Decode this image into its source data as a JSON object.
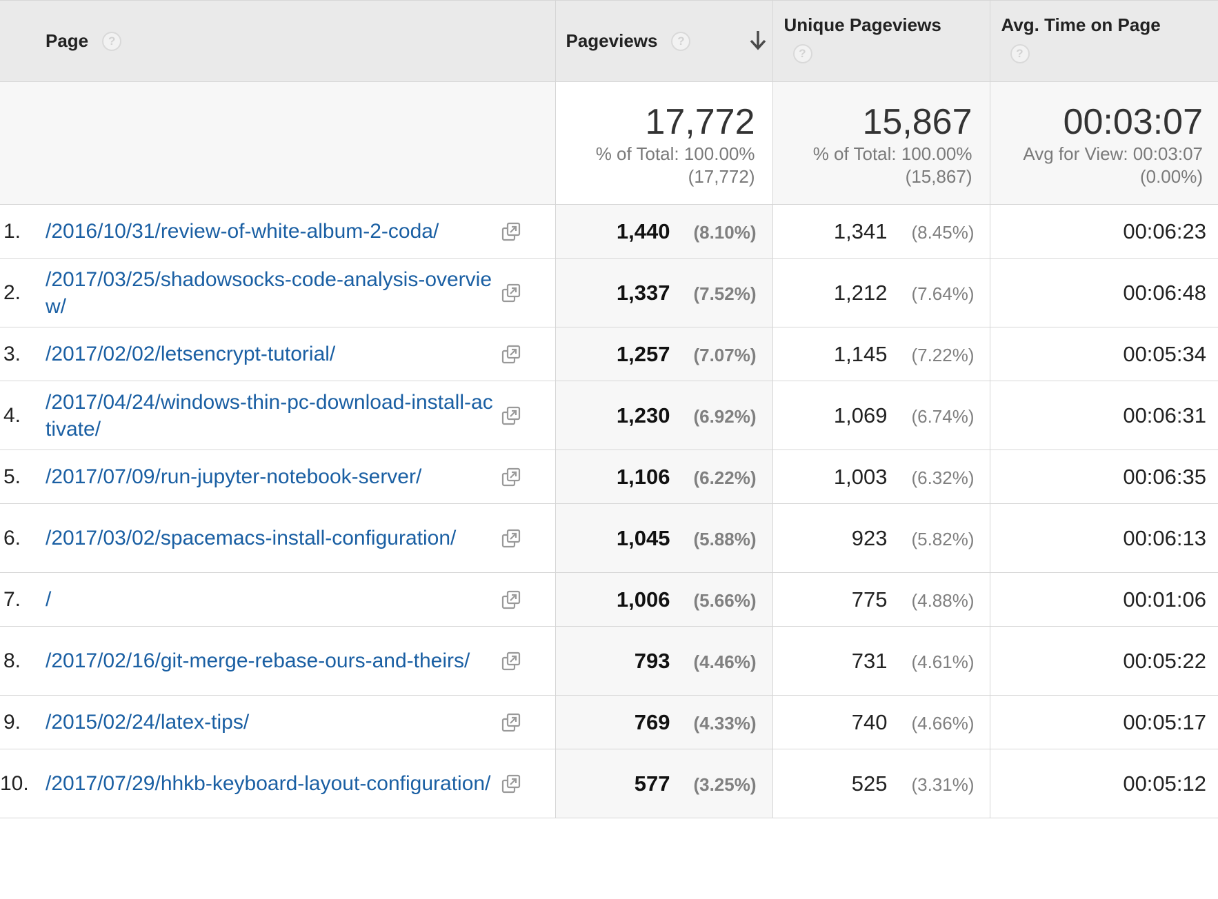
{
  "header": {
    "page": "Page",
    "pageviews": "Pageviews",
    "unique_pageviews": "Unique Pageviews",
    "avg_time": "Avg. Time on Page",
    "help_glyph": "?",
    "sort_icon": "arrow-down-icon"
  },
  "totals": {
    "pageviews": {
      "value": "17,772",
      "pct": "% of Total: 100.00%",
      "abs": "(17,772)"
    },
    "unique_pageviews": {
      "value": "15,867",
      "pct": "% of Total: 100.00%",
      "abs": "(15,867)"
    },
    "avg_time": {
      "value": "00:03:07",
      "pct": "Avg for View: 00:03:07",
      "abs": "(0.00%)"
    }
  },
  "rows": [
    {
      "rank": "1.",
      "page": "/2016/10/31/review-of-white-album-2-coda/",
      "pageviews": "1,440",
      "pv_pct": "(8.10%)",
      "unique": "1,341",
      "upv_pct": "(8.45%)",
      "avg_time": "00:06:23"
    },
    {
      "rank": "2.",
      "page": "/2017/03/25/shadowsocks-code-analysis-overview/",
      "pageviews": "1,337",
      "pv_pct": "(7.52%)",
      "unique": "1,212",
      "upv_pct": "(7.64%)",
      "avg_time": "00:06:48"
    },
    {
      "rank": "3.",
      "page": "/2017/02/02/letsencrypt-tutorial/",
      "pageviews": "1,257",
      "pv_pct": "(7.07%)",
      "unique": "1,145",
      "upv_pct": "(7.22%)",
      "avg_time": "00:05:34"
    },
    {
      "rank": "4.",
      "page": "/2017/04/24/windows-thin-pc-download-install-activate/",
      "pageviews": "1,230",
      "pv_pct": "(6.92%)",
      "unique": "1,069",
      "upv_pct": "(6.74%)",
      "avg_time": "00:06:31"
    },
    {
      "rank": "5.",
      "page": "/2017/07/09/run-jupyter-notebook-server/",
      "pageviews": "1,106",
      "pv_pct": "(6.22%)",
      "unique": "1,003",
      "upv_pct": "(6.32%)",
      "avg_time": "00:06:35"
    },
    {
      "rank": "6.",
      "page": "/2017/03/02/spacemacs-install-configuration/",
      "pageviews": "1,045",
      "pv_pct": "(5.88%)",
      "unique": "923",
      "upv_pct": "(5.82%)",
      "avg_time": "00:06:13"
    },
    {
      "rank": "7.",
      "page": "/",
      "pageviews": "1,006",
      "pv_pct": "(5.66%)",
      "unique": "775",
      "upv_pct": "(4.88%)",
      "avg_time": "00:01:06"
    },
    {
      "rank": "8.",
      "page": "/2017/02/16/git-merge-rebase-ours-and-theirs/",
      "pageviews": "793",
      "pv_pct": "(4.46%)",
      "unique": "731",
      "upv_pct": "(4.61%)",
      "avg_time": "00:05:22"
    },
    {
      "rank": "9.",
      "page": "/2015/02/24/latex-tips/",
      "pageviews": "769",
      "pv_pct": "(4.33%)",
      "unique": "740",
      "upv_pct": "(4.66%)",
      "avg_time": "00:05:17"
    },
    {
      "rank": "10.",
      "page": "/2017/07/29/hhkb-keyboard-layout-configuration/",
      "pageviews": "577",
      "pv_pct": "(3.25%)",
      "unique": "525",
      "upv_pct": "(3.31%)",
      "avg_time": "00:05:12"
    }
  ],
  "colors": {
    "link": "#1a5fa3",
    "header_bg": "#eaeaea",
    "shaded_cell": "#f7f7f7",
    "grid": "#d6d6d6",
    "pct_text": "#808080"
  }
}
